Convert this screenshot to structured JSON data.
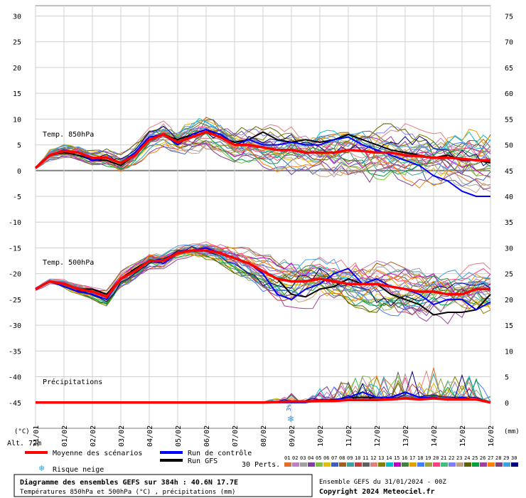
{
  "chart_data": {
    "type": "line",
    "title_line1": "Diagramme des ensembles GEFS sur 384h : 40.6N 17.7E",
    "title_line2": "Températures 850hPa et 500hPa (°C) , précipitations (mm)",
    "run_info": "Ensemble GEFS du 31/01/2024 - 00Z",
    "copyright": "Copyright 2024 Meteociel.fr",
    "left_axis_unit": "(°C)",
    "right_axis_unit": "(mm)",
    "altitude": "Alt. 72m",
    "left_axis": {
      "ylim": [
        -50,
        32
      ],
      "ticks": [
        30,
        25,
        20,
        15,
        10,
        5,
        0,
        -5,
        -10,
        -15,
        -20,
        -25,
        -30,
        -35,
        -40,
        -45
      ]
    },
    "right_axis_ticks": [
      75,
      70,
      65,
      60,
      55,
      50,
      45,
      40,
      35,
      30,
      25,
      20,
      15,
      10,
      5,
      0
    ],
    "x_ticks": [
      "31/01",
      "01/02",
      "02/02",
      "03/02",
      "04/02",
      "05/02",
      "06/02",
      "07/02",
      "08/02",
      "09/02",
      "10/02",
      "11/02",
      "12/02",
      "13/02",
      "14/02",
      "15/02",
      "16/02"
    ],
    "x_range_days": [
      0,
      16
    ],
    "annotations": {
      "t850_label": "Temp. 850hPa",
      "t500_label": "Temp. 500hPa",
      "precip_label": "Précipitations",
      "snow_risk_text": "3%"
    },
    "legend": {
      "mean": "Moyenne des scénarios",
      "control": "Run de contrôle",
      "gfs": "Run GFS",
      "snow": "Risque neige",
      "perts": "30 Perts."
    },
    "pert_numbers": [
      "01",
      "02",
      "03",
      "04",
      "05",
      "06",
      "07",
      "08",
      "09",
      "10",
      "11",
      "12",
      "13",
      "14",
      "15",
      "16",
      "17",
      "18",
      "19",
      "20",
      "21",
      "22",
      "23",
      "24",
      "25",
      "26",
      "27",
      "28",
      "29",
      "30"
    ],
    "pert_colors": [
      "#e07030",
      "#c080c0",
      "#a0a0a0",
      "#8040a0",
      "#80c040",
      "#e0c000",
      "#4060c0",
      "#a06020",
      "#40a0a0",
      "#c04040",
      "#606060",
      "#e08080",
      "#808000",
      "#00c0c0",
      "#c000c0",
      "#408040",
      "#e0a000",
      "#4080ff",
      "#a0a040",
      "#ff4080",
      "#40c080",
      "#8080ff",
      "#c0a080",
      "#606000",
      "#00a040",
      "#a040a0",
      "#ff8000",
      "#804080",
      "#40a0e0",
      "#000080"
    ],
    "series_colors": {
      "mean": "#ff0000",
      "control": "#0000ff",
      "gfs": "#000000"
    },
    "t850": {
      "x": [
        0,
        0.5,
        1,
        1.5,
        2,
        2.5,
        3,
        3.5,
        4,
        4.5,
        5,
        5.5,
        6,
        6.5,
        7,
        7.5,
        8,
        8.5,
        9,
        9.5,
        10,
        10.5,
        11,
        11.5,
        12,
        12.5,
        13,
        13.5,
        14,
        14.5,
        15,
        15.5,
        16
      ],
      "mean": [
        0.5,
        3,
        3.8,
        3.5,
        2.5,
        2.5,
        1.5,
        3,
        6,
        7,
        5.5,
        6.5,
        7.5,
        6.5,
        5,
        5,
        4.5,
        4,
        4,
        3.5,
        3.5,
        3.5,
        4,
        3.8,
        3.5,
        3.5,
        3,
        2.8,
        2.5,
        2.5,
        2.3,
        2,
        2
      ],
      "control": [
        0.5,
        3,
        4,
        3.5,
        2,
        2.5,
        1.5,
        3.5,
        6.5,
        7,
        5,
        7,
        8,
        7,
        5,
        6,
        5,
        5,
        5.5,
        5,
        5,
        6,
        6.5,
        5,
        4,
        3,
        2,
        1,
        -1,
        -2,
        -4,
        -5,
        -5
      ],
      "gfs": [
        0.5,
        3,
        3.5,
        3,
        2,
        2,
        1,
        3,
        6,
        7,
        6,
        7,
        8,
        6.5,
        5.5,
        6,
        7.5,
        6,
        5.5,
        6,
        5.5,
        6,
        7,
        6,
        5,
        4,
        3.5,
        3,
        2.5,
        3,
        2,
        2,
        1.5
      ],
      "spread": [
        0.2,
        1,
        1.2,
        1.3,
        1.5,
        1.5,
        1.8,
        2,
        2.2,
        2.5,
        2.5,
        2.8,
        3,
        3,
        3,
        3.2,
        3.5,
        3.8,
        4,
        4,
        4,
        4.2,
        4.5,
        4.5,
        4.5,
        4.8,
        5,
        5,
        5,
        5,
        5,
        5,
        5
      ]
    },
    "t500": {
      "x": [
        0,
        0.5,
        1,
        1.5,
        2,
        2.5,
        3,
        3.5,
        4,
        4.5,
        5,
        5.5,
        6,
        6.5,
        7,
        7.5,
        8,
        8.5,
        9,
        9.5,
        10,
        10.5,
        11,
        11.5,
        12,
        12.5,
        13,
        13.5,
        14,
        14.5,
        15,
        15.5,
        16
      ],
      "mean": [
        -23,
        -21.5,
        -22,
        -23,
        -23.5,
        -24.5,
        -21,
        -19.5,
        -17.5,
        -17.5,
        -16,
        -15.5,
        -15.5,
        -16,
        -17,
        -18,
        -19.5,
        -21,
        -21.5,
        -21.5,
        -21,
        -21.5,
        -22,
        -22,
        -22,
        -22.5,
        -23,
        -23.5,
        -23.5,
        -24,
        -24,
        -23,
        -23
      ],
      "control": [
        -23,
        -21.5,
        -22.5,
        -23.5,
        -24,
        -25,
        -21,
        -19.5,
        -17.5,
        -18,
        -16,
        -15.5,
        -15,
        -16,
        -17,
        -18,
        -20,
        -24,
        -25,
        -23,
        -22,
        -20,
        -19,
        -22,
        -21,
        -22.5,
        -23,
        -24,
        -26,
        -25,
        -25,
        -27,
        -25.5
      ],
      "gfs": [
        -23,
        -21.5,
        -22,
        -23,
        -23,
        -24,
        -21,
        -19,
        -17.5,
        -17.5,
        -16,
        -15.5,
        -15.5,
        -16,
        -17,
        -18,
        -19.5,
        -21,
        -24,
        -24.5,
        -23,
        -22.5,
        -21,
        -22,
        -22,
        -24,
        -25,
        -26,
        -28,
        -27.5,
        -27.5,
        -27,
        -24
      ],
      "spread": [
        0.3,
        0.5,
        0.8,
        1,
        1.2,
        1.5,
        1.5,
        1.5,
        1.5,
        1.5,
        1.5,
        1.5,
        1.8,
        2,
        2.5,
        3,
        3.5,
        4,
        4.5,
        4.5,
        4.5,
        4.5,
        4.5,
        4.5,
        4.5,
        4.5,
        4.5,
        4.5,
        4.5,
        4.5,
        4.5,
        4.5,
        4.5
      ]
    },
    "precip": {
      "x": [
        0,
        2,
        4,
        6,
        8,
        8.5,
        9,
        9.5,
        10,
        10.5,
        11,
        11.5,
        12,
        12.5,
        13,
        13.5,
        14,
        14.5,
        15,
        15.5,
        16
      ],
      "mean": [
        0,
        0,
        0,
        0,
        0,
        0.1,
        0.2,
        0.2,
        0.3,
        0.3,
        0.5,
        0.5,
        0.5,
        0.6,
        0.8,
        0.6,
        0.8,
        0.6,
        0.6,
        0.6,
        0
      ],
      "control": [
        0,
        0,
        0,
        0,
        0,
        0,
        0,
        0,
        0.5,
        0.5,
        1,
        2,
        1,
        1,
        2,
        1,
        1,
        0.5,
        1,
        0.5,
        0
      ],
      "gfs": [
        0,
        0,
        0,
        0,
        0,
        0,
        0,
        0,
        0.5,
        0.5,
        1,
        1,
        1,
        1,
        2,
        1,
        1,
        0.5,
        1,
        0.5,
        0
      ],
      "spread": [
        0,
        0,
        0,
        0,
        0.1,
        0.5,
        1,
        1,
        1.5,
        2,
        3,
        3,
        3,
        3,
        4,
        3,
        4,
        3,
        3,
        3,
        1
      ]
    }
  }
}
